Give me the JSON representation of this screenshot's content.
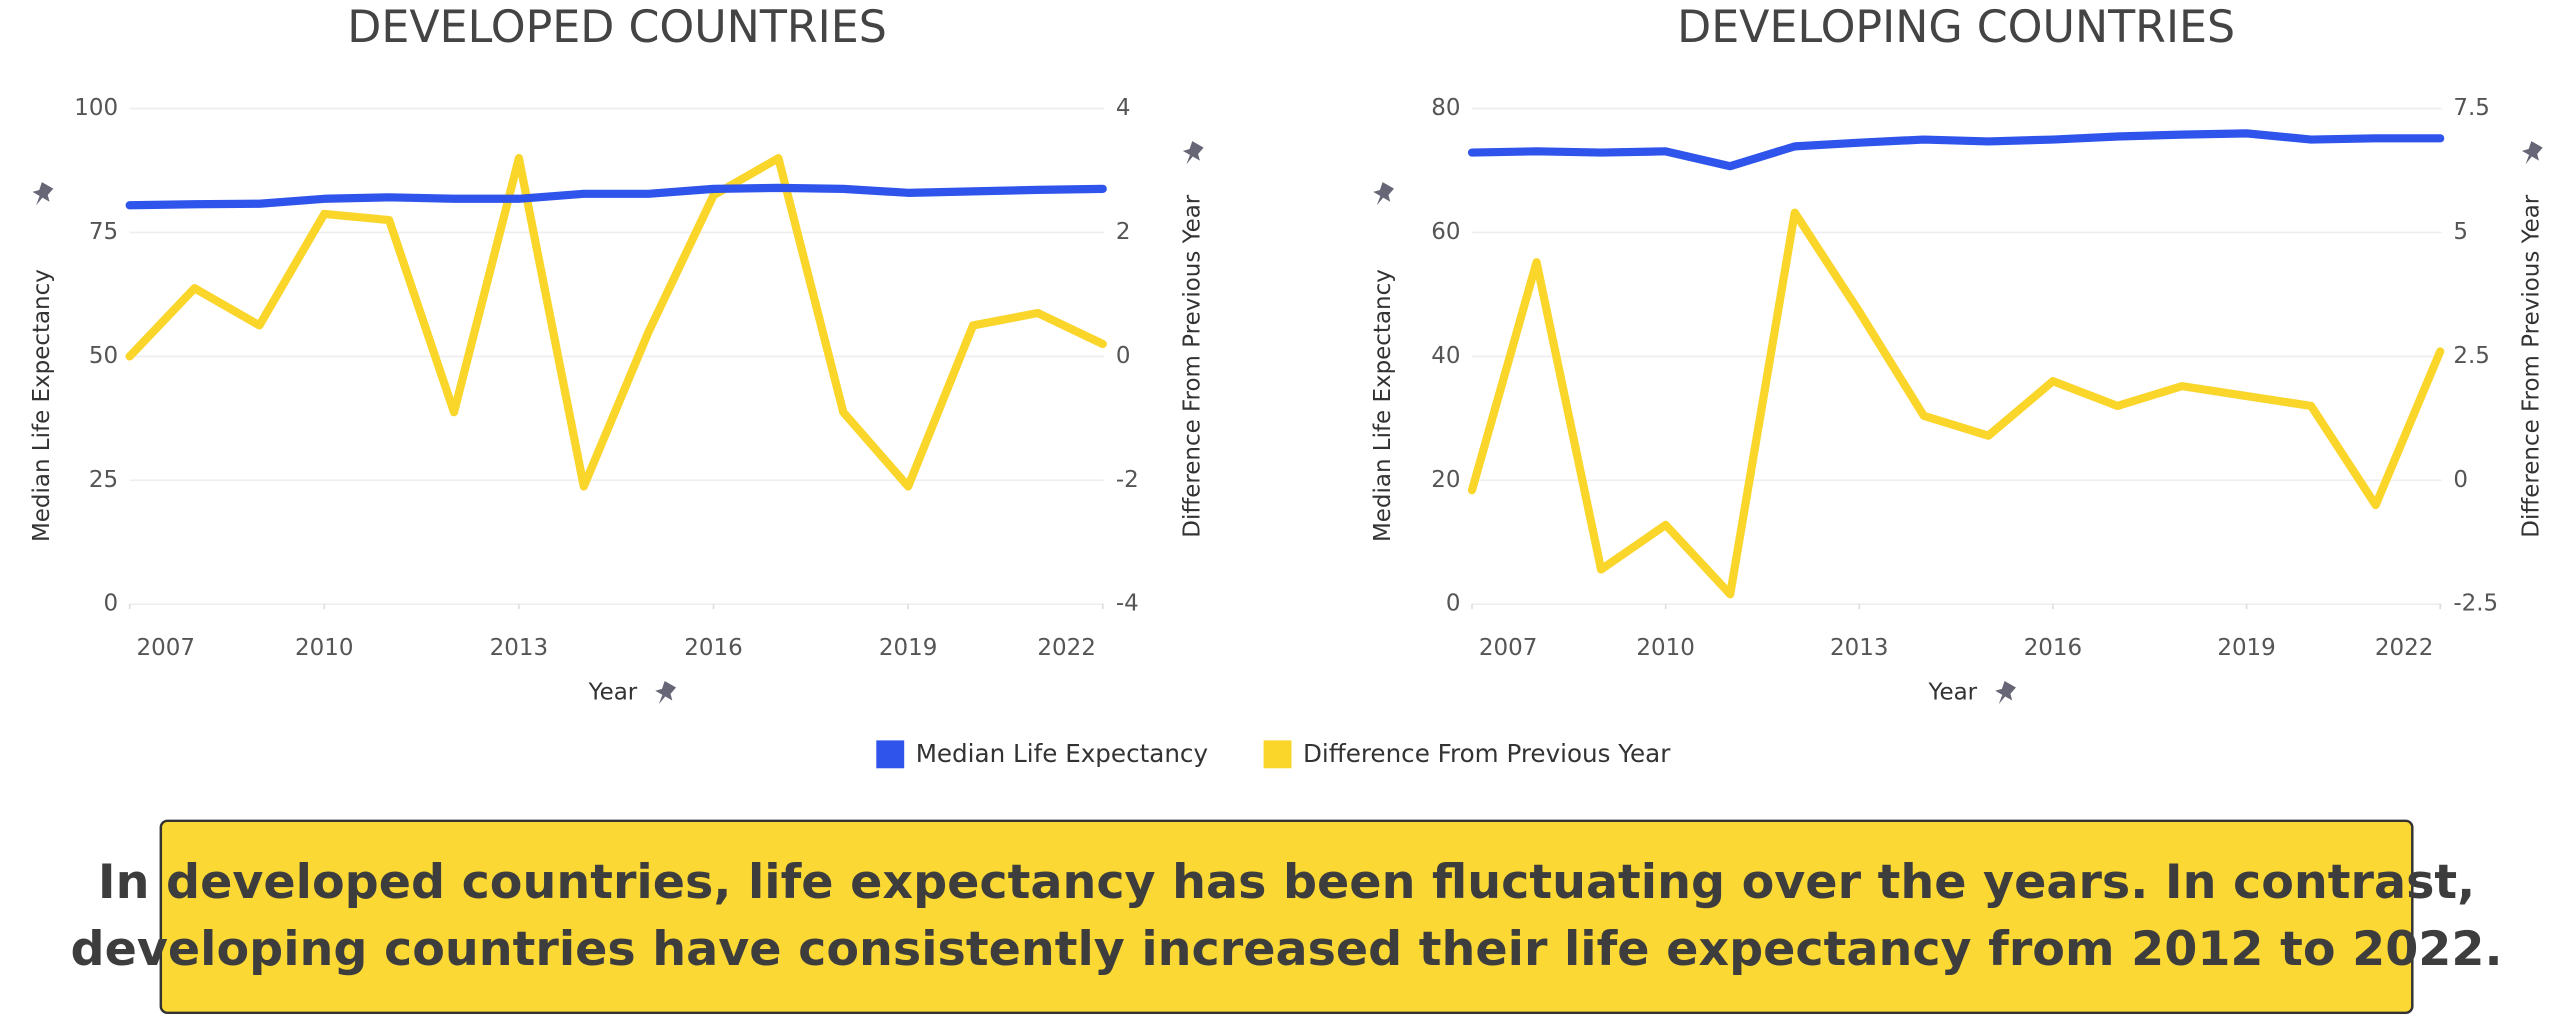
{
  "chart_data": [
    {
      "type": "line",
      "title": "DEVELOPED COUNTRIES",
      "xlabel": "Year",
      "ylabel": "Median Life Expectancy",
      "y2label": "Difference From Previous Year",
      "x": [
        2007,
        2008,
        2009,
        2010,
        2011,
        2012,
        2013,
        2014,
        2015,
        2016,
        2017,
        2018,
        2019,
        2020,
        2021,
        2022
      ],
      "xlim": [
        2007,
        2022
      ],
      "xticks": [
        2007,
        2010,
        2013,
        2016,
        2019,
        2022
      ],
      "ylim": [
        0,
        100
      ],
      "yticks": [
        0,
        25,
        50,
        75,
        100
      ],
      "y2lim": [
        -4,
        4
      ],
      "y2ticks": [
        -4,
        -2,
        0,
        2,
        4
      ],
      "grid": true,
      "series": [
        {
          "name": "Median Life Expectancy",
          "color": "#2f54eb",
          "values": [
            80.5,
            80.7,
            80.8,
            81.8,
            82.1,
            81.8,
            81.8,
            82.8,
            82.8,
            83.8,
            84,
            83.8,
            83,
            83.3,
            83.6,
            83.8
          ]
        },
        {
          "name": "Difference From Previous Year",
          "color": "#fad52a",
          "axis": "y2",
          "values": [
            0,
            1.1,
            0.5,
            2.3,
            2.2,
            -0.9,
            3.2,
            -2.1,
            0.4,
            2.6,
            3.2,
            -0.9,
            -2.1,
            0.5,
            0.7,
            0.2
          ]
        }
      ]
    },
    {
      "type": "line",
      "title": "DEVELOPING COUNTRIES",
      "xlabel": "Year",
      "ylabel": "Median Life Expectancy",
      "y2label": "Difference From Previous Year",
      "x": [
        2007,
        2008,
        2009,
        2010,
        2011,
        2012,
        2013,
        2014,
        2015,
        2016,
        2017,
        2018,
        2019,
        2020,
        2021,
        2022
      ],
      "xlim": [
        2007,
        2022
      ],
      "xticks": [
        2007,
        2010,
        2013,
        2016,
        2019,
        2022
      ],
      "ylim": [
        0,
        80
      ],
      "yticks": [
        0,
        20,
        40,
        60,
        80
      ],
      "y2lim": [
        -2.5,
        7.5
      ],
      "y2ticks": [
        -2.5,
        0,
        2.5,
        5,
        7.5
      ],
      "grid": true,
      "series": [
        {
          "name": "Median Life Expectancy",
          "color": "#2f54eb",
          "values": [
            72.9,
            73.1,
            72.9,
            73.1,
            70.7,
            73.9,
            74.5,
            75,
            74.7,
            75,
            75.5,
            75.8,
            76,
            75,
            75.2,
            75.2
          ]
        },
        {
          "name": "Difference From Previous Year",
          "color": "#fad52a",
          "axis": "y2",
          "values": [
            -0.2,
            4.4,
            -1.8,
            -0.9,
            -2.3,
            5.4,
            3.4,
            1.3,
            0.9,
            2,
            1.5,
            1.9,
            1.7,
            1.5,
            -0.5,
            2.6
          ]
        }
      ]
    }
  ],
  "caption": [
    "In developed countries, life expectancy has been fluctuating over the years. In contrast,",
    "developing countries have consistently increased their life expectancy from 2012 to 2022."
  ]
}
